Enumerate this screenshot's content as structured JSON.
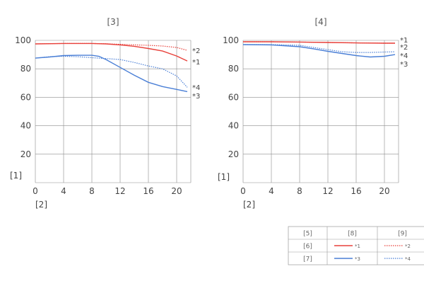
{
  "chart_data": [
    {
      "type": "line",
      "title": "[3]",
      "ylabel": "[1]",
      "xlabel": "[2]",
      "xlim": [
        0,
        22
      ],
      "ylim": [
        0,
        100
      ],
      "x_ticks": [
        0,
        4,
        8,
        12,
        16,
        20
      ],
      "y_ticks": [
        20,
        40,
        60,
        80,
        100
      ],
      "grid": true,
      "series": [
        {
          "name": "*1",
          "color": "#e8413b",
          "style": "solid",
          "points": [
            [
              0,
              97.5
            ],
            [
              4,
              97.8
            ],
            [
              8,
              97.8
            ],
            [
              10,
              97.5
            ],
            [
              12,
              96.8
            ],
            [
              14,
              95.8
            ],
            [
              16,
              94.3
            ],
            [
              18,
              92.5
            ],
            [
              20,
              89
            ],
            [
              21.5,
              85.5
            ]
          ]
        },
        {
          "name": "*2",
          "color": "#e8413b",
          "style": "dotted",
          "points": [
            [
              0,
              97.5
            ],
            [
              4,
              97.8
            ],
            [
              8,
              97.8
            ],
            [
              10,
              97.6
            ],
            [
              12,
              97.2
            ],
            [
              14,
              96.8
            ],
            [
              16,
              96.5
            ],
            [
              18,
              96
            ],
            [
              20,
              95
            ],
            [
              21.5,
              93
            ]
          ]
        },
        {
          "name": "*3",
          "color": "#4a7fd6",
          "style": "solid",
          "points": [
            [
              0,
              87.5
            ],
            [
              2,
              88.3
            ],
            [
              4,
              89.3
            ],
            [
              6,
              89.5
            ],
            [
              8,
              89.5
            ],
            [
              9,
              88.8
            ],
            [
              10,
              86.5
            ],
            [
              12,
              81
            ],
            [
              14,
              75.5
            ],
            [
              16,
              70.5
            ],
            [
              18,
              67.5
            ],
            [
              20,
              65.5
            ],
            [
              21.5,
              64
            ]
          ]
        },
        {
          "name": "*4",
          "color": "#4a7fd6",
          "style": "dotted",
          "points": [
            [
              0,
              87.5
            ],
            [
              2,
              88.5
            ],
            [
              4,
              88.8
            ],
            [
              6,
              88.5
            ],
            [
              8,
              87.8
            ],
            [
              10,
              87.2
            ],
            [
              12,
              86.5
            ],
            [
              14,
              84.5
            ],
            [
              16,
              82
            ],
            [
              18,
              80
            ],
            [
              20,
              75
            ],
            [
              21.5,
              67
            ]
          ]
        }
      ]
    },
    {
      "type": "line",
      "title": "[4]",
      "ylabel": "[1]",
      "xlabel": "[2]",
      "xlim": [
        0,
        22
      ],
      "ylim": [
        0,
        100
      ],
      "x_ticks": [
        0,
        4,
        8,
        12,
        16,
        20
      ],
      "y_ticks": [
        20,
        40,
        60,
        80,
        100
      ],
      "grid": true,
      "series": [
        {
          "name": "*1",
          "color": "#e8413b",
          "style": "solid",
          "points": [
            [
              0,
              99
            ],
            [
              4,
              99
            ],
            [
              8,
              98.8
            ],
            [
              12,
              98.5
            ],
            [
              16,
              98.2
            ],
            [
              20,
              98
            ],
            [
              21.5,
              98
            ]
          ]
        },
        {
          "name": "*2",
          "color": "#e8413b",
          "style": "dotted",
          "points": [
            [
              0,
              99
            ],
            [
              4,
              99
            ],
            [
              8,
              98.8
            ],
            [
              12,
              98.5
            ],
            [
              16,
              98.2
            ],
            [
              20,
              98
            ],
            [
              21.5,
              98
            ]
          ]
        },
        {
          "name": "*3",
          "color": "#4a7fd6",
          "style": "solid",
          "points": [
            [
              0,
              97
            ],
            [
              4,
              96.8
            ],
            [
              8,
              95.5
            ],
            [
              10,
              94
            ],
            [
              12,
              92.3
            ],
            [
              14,
              90.8
            ],
            [
              16,
              89.3
            ],
            [
              18,
              88.3
            ],
            [
              20,
              88.8
            ],
            [
              21.5,
              90
            ]
          ]
        },
        {
          "name": "*4",
          "color": "#4a7fd6",
          "style": "dotted",
          "points": [
            [
              0,
              97
            ],
            [
              4,
              97
            ],
            [
              8,
              96.5
            ],
            [
              10,
              95
            ],
            [
              12,
              93.5
            ],
            [
              14,
              92
            ],
            [
              16,
              91.5
            ],
            [
              18,
              91.5
            ],
            [
              20,
              91.8
            ],
            [
              21.5,
              92
            ]
          ]
        }
      ]
    }
  ],
  "legend": {
    "header": [
      "[5]",
      "[8]",
      "[9]"
    ],
    "rows": [
      {
        "label": "[6]",
        "solid": "*1",
        "dotted": "*2",
        "color": "#e8413b"
      },
      {
        "label": "[7]",
        "solid": "*3",
        "dotted": "*4",
        "color": "#4a7fd6"
      }
    ]
  }
}
